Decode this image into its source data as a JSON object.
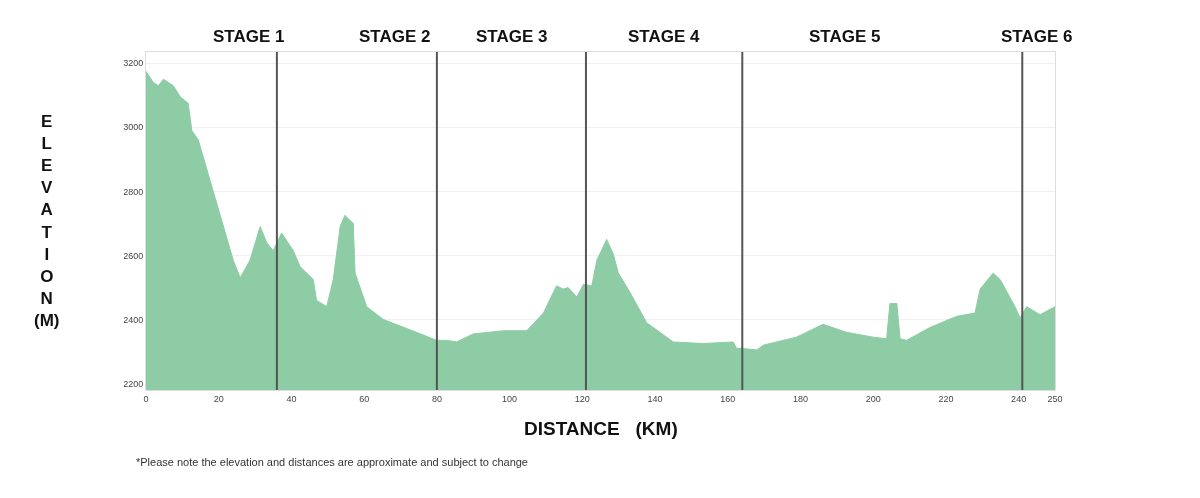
{
  "chart_data": {
    "type": "area",
    "xlabel": "DISTANCE   (KM)",
    "ylabel": "ELEVATION (M)",
    "x": [
      0,
      2.0,
      3.4,
      4.8,
      7.5,
      9.4,
      11.6,
      12.6,
      14.4,
      17.6,
      24.0,
      25.9,
      28.6,
      31.4,
      33.2,
      35.0,
      37.3,
      40.5,
      42.4,
      46.0,
      46.9,
      49.7,
      51.5,
      53.4,
      54.7,
      57.0,
      57.5,
      60.7,
      65.3,
      74.4,
      79.9,
      82.7,
      85.4,
      90.0,
      98.3,
      104.7,
      109.3,
      112.9,
      114.8,
      116.1,
      118.5,
      120.3,
      122.6,
      124.0,
      126.7,
      128.5,
      129.9,
      133.1,
      137.7,
      145.0,
      153.3,
      161.5,
      162.4,
      163.4,
      168.0,
      169.8,
      178.9,
      186.2,
      192.7,
      200.0,
      203.7,
      204.6,
      206.5,
      207.4,
      209.2,
      215.6,
      223.0,
      228.0,
      229.4,
      233.0,
      234.9,
      239.0,
      240.4,
      242.2,
      245.9,
      250
    ],
    "series": [
      {
        "color": "#8dcca5",
        "values": [
          3175,
          3140,
          3130,
          3150,
          3130,
          3095,
          3075,
          2990,
          2960,
          2835,
          2585,
          2530,
          2585,
          2690,
          2640,
          2615,
          2670,
          2615,
          2565,
          2525,
          2460,
          2440,
          2525,
          2690,
          2725,
          2700,
          2545,
          2440,
          2400,
          2360,
          2335,
          2335,
          2330,
          2355,
          2365,
          2365,
          2420,
          2505,
          2495,
          2500,
          2470,
          2510,
          2505,
          2585,
          2650,
          2605,
          2545,
          2485,
          2390,
          2330,
          2325,
          2330,
          2310,
          2310,
          2305,
          2320,
          2345,
          2385,
          2360,
          2345,
          2340,
          2450,
          2450,
          2340,
          2335,
          2375,
          2410,
          2420,
          2495,
          2545,
          2525,
          2440,
          2405,
          2440,
          2415,
          2440
        ]
      }
    ],
    "xlim": [
      0,
      250
    ],
    "ylim": [
      2180,
      3235
    ],
    "xticks": [
      0,
      20,
      40,
      60,
      80,
      100,
      120,
      140,
      160,
      180,
      200,
      220,
      240,
      250
    ],
    "yticks": [
      2200,
      2400,
      2600,
      2800,
      3000,
      3200
    ],
    "grid": "y",
    "ref_lines": [
      {
        "axis": "x",
        "value": 36,
        "color": "#555555"
      },
      {
        "axis": "x",
        "value": 80,
        "color": "#555555"
      },
      {
        "axis": "x",
        "value": 121,
        "color": "#555555"
      },
      {
        "axis": "x",
        "value": 164,
        "color": "#555555"
      },
      {
        "axis": "x",
        "value": 241,
        "color": "#555555"
      }
    ],
    "annotations": [
      "STAGE 1",
      "STAGE 2",
      "STAGE 3",
      "STAGE 4",
      "STAGE 5",
      "STAGE 6",
      "*Please note the elevation and distances are approximate and subject to change"
    ]
  }
}
